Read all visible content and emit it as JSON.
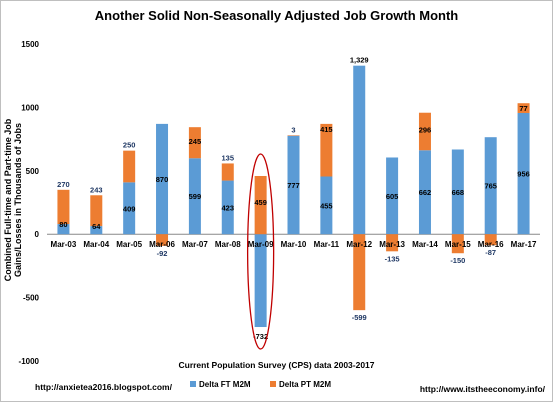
{
  "chart_data": {
    "type": "bar",
    "stacked": true,
    "title": "Another Solid Non-Seasonally Adjusted Job Growth Month",
    "ylabel": "Combined Full-time and Part-time Job Gains/Losses in Thousands of Jobs",
    "xlabel": "Current Population Survey (CPS) data 2003-2017",
    "ylim": [
      -1000,
      1500
    ],
    "yticks": [
      "1500",
      "1000",
      "500",
      "0",
      "-500",
      "-1000"
    ],
    "categories": [
      "Mar-03",
      "Mar-04",
      "Mar-05",
      "Mar-06",
      "Mar-07",
      "Mar-08",
      "Mar-09",
      "Mar-10",
      "Mar-11",
      "Mar-12",
      "Mar-13",
      "Mar-14",
      "Mar-15",
      "Mar-16",
      "Mar-17"
    ],
    "series": [
      {
        "name": "Delta FT M2M",
        "color": "#5b9bd5",
        "values": [
          80,
          64,
          409,
          870,
          599,
          423,
          -732,
          777,
          455,
          1329,
          605,
          662,
          668,
          765,
          956
        ],
        "labels": [
          "80",
          "64",
          "409",
          "870",
          "599",
          "423",
          "-732",
          "777",
          "455",
          "1,329",
          "605",
          "662",
          "668",
          "765",
          "956"
        ]
      },
      {
        "name": "Delta PT M2M",
        "color": "#ed7d31",
        "values": [
          270,
          243,
          250,
          -92,
          245,
          135,
          459,
          3,
          415,
          -599,
          -135,
          296,
          -150,
          -87,
          77
        ],
        "labels": [
          "270",
          "243",
          "250",
          "-92",
          "245",
          "135",
          "459",
          "3",
          "415",
          "-599",
          "-135",
          "296",
          "-150",
          "-87",
          "77"
        ]
      }
    ],
    "legend_position": "bottom",
    "grid": false,
    "highlight_category": "Mar-09"
  },
  "footer": {
    "left": "http://anxietea2016.blogspot.com/",
    "right": "http://www.itstheeconomy.info/"
  }
}
